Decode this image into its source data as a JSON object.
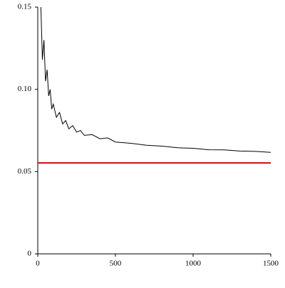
{
  "chart_data": {
    "type": "line",
    "series": [
      {
        "color": "#000000",
        "x": [
          20,
          30,
          40,
          50,
          60,
          70,
          80,
          90,
          100,
          120,
          140,
          160,
          180,
          200,
          225,
          250,
          275,
          300,
          350,
          400,
          450,
          500,
          600,
          700,
          800,
          900,
          1000,
          1100,
          1200,
          1300,
          1400,
          1500
        ],
        "values": [
          0.15,
          0.118,
          0.13,
          0.105,
          0.112,
          0.096,
          0.1,
          0.088,
          0.091,
          0.083,
          0.086,
          0.079,
          0.081,
          0.076,
          0.078,
          0.074,
          0.075,
          0.072,
          0.0725,
          0.07,
          0.0705,
          0.068,
          0.0672,
          0.066,
          0.0655,
          0.0645,
          0.0642,
          0.0633,
          0.0632,
          0.0625,
          0.0623,
          0.0617
        ]
      },
      {
        "color": "#e00000",
        "x": [
          0,
          1500
        ],
        "values": [
          0.0553,
          0.0553
        ]
      }
    ],
    "xlim": [
      0,
      1500
    ],
    "xticks": [
      0,
      500,
      1000,
      1500
    ],
    "ylim": [
      0,
      0.15
    ],
    "yticks": [
      0,
      0.05,
      {
        "value": 0.1,
        "label": "0.10"
      },
      0.15
    ]
  }
}
